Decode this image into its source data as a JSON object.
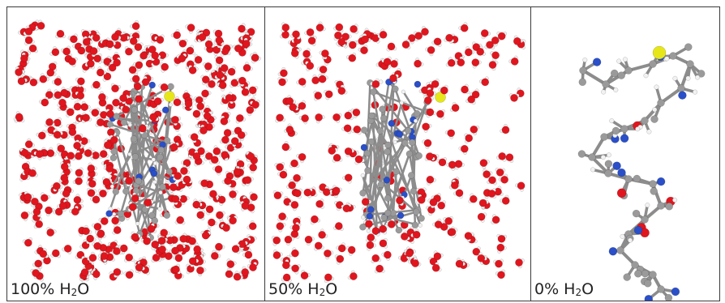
{
  "panels": [
    {
      "label_prefix": "100% H",
      "label_sub": "2",
      "label_suffix": "O",
      "density": 520,
      "solvated": true,
      "molecule": "compact"
    },
    {
      "label_prefix": "50% H",
      "label_sub": "2",
      "label_suffix": "O",
      "density": 270,
      "solvated": true,
      "molecule": "compact"
    },
    {
      "label_prefix": "0% H",
      "label_sub": "2",
      "label_suffix": "O",
      "density": 0,
      "solvated": false,
      "molecule": "extended"
    }
  ],
  "colors": {
    "oxygen": "#e0161e",
    "hydrogen": "#f2f2f2",
    "carbon": "#9a9a9a",
    "nitrogen": "#2a4fc8",
    "sulfur": "#e6e61a",
    "border": "#3a3a3a"
  }
}
